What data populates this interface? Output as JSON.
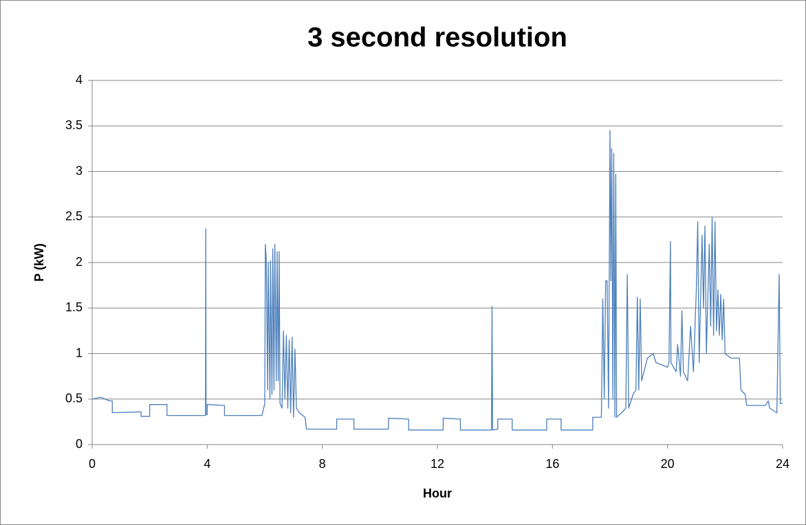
{
  "chart_data": {
    "type": "line",
    "title": "3 second resolution",
    "x_label": "Hour",
    "y_label": "P (kW)",
    "x": [
      0,
      0.3,
      0.6,
      0.7,
      0.7,
      1.7,
      1.7,
      2.0,
      2.0,
      2.6,
      2.6,
      3.94,
      3.95,
      3.96,
      4.0,
      4.0,
      4.6,
      4.6,
      5.9,
      6.0,
      6.02,
      6.05,
      6.1,
      6.12,
      6.18,
      6.2,
      6.25,
      6.28,
      6.32,
      6.35,
      6.4,
      6.43,
      6.47,
      6.5,
      6.53,
      6.6,
      6.65,
      6.7,
      6.75,
      6.8,
      6.85,
      6.9,
      6.95,
      7.0,
      7.05,
      7.1,
      7.2,
      7.4,
      7.45,
      8.5,
      8.5,
      9.1,
      9.1,
      10.3,
      10.3,
      11.0,
      11.0,
      12.2,
      12.2,
      12.8,
      12.8,
      13.88,
      13.9,
      13.92,
      14.1,
      14.1,
      14.6,
      14.6,
      15.8,
      15.8,
      16.3,
      16.3,
      17.4,
      17.4,
      17.7,
      17.75,
      17.8,
      17.85,
      17.9,
      17.95,
      18.0,
      18.03,
      18.06,
      18.1,
      18.13,
      18.17,
      18.2,
      18.23,
      18.4,
      18.55,
      18.6,
      18.65,
      18.8,
      18.9,
      18.95,
      19.0,
      19.05,
      19.1,
      19.3,
      19.5,
      19.6,
      20.0,
      20.05,
      20.1,
      20.12,
      20.3,
      20.35,
      20.45,
      20.5,
      20.55,
      20.7,
      20.8,
      20.9,
      21.0,
      21.05,
      21.1,
      21.2,
      21.25,
      21.3,
      21.35,
      21.45,
      21.5,
      21.55,
      21.6,
      21.65,
      21.7,
      21.75,
      21.8,
      21.85,
      21.9,
      21.95,
      22.0,
      22.2,
      22.5,
      22.55,
      22.7,
      22.75,
      23.4,
      23.5,
      23.55,
      23.8,
      23.88,
      23.92,
      24.0
    ],
    "values": [
      0.5,
      0.52,
      0.48,
      0.48,
      0.35,
      0.36,
      0.31,
      0.31,
      0.44,
      0.44,
      0.32,
      0.32,
      2.37,
      0.33,
      0.33,
      0.44,
      0.43,
      0.32,
      0.32,
      0.45,
      2.2,
      2.04,
      0.6,
      2.0,
      0.5,
      2.02,
      0.55,
      2.15,
      0.6,
      2.2,
      0.7,
      2.12,
      0.7,
      2.12,
      0.45,
      0.4,
      1.25,
      0.5,
      1.2,
      0.4,
      1.15,
      0.35,
      1.18,
      0.3,
      1.05,
      0.4,
      0.35,
      0.3,
      0.17,
      0.17,
      0.28,
      0.28,
      0.17,
      0.17,
      0.29,
      0.28,
      0.16,
      0.16,
      0.29,
      0.28,
      0.16,
      0.16,
      1.52,
      0.16,
      0.17,
      0.28,
      0.28,
      0.16,
      0.16,
      0.28,
      0.28,
      0.16,
      0.16,
      0.3,
      0.3,
      1.6,
      0.5,
      1.8,
      1.8,
      0.4,
      3.45,
      1.8,
      3.25,
      0.5,
      3.2,
      0.3,
      2.97,
      0.3,
      0.35,
      0.4,
      1.87,
      0.4,
      0.55,
      0.6,
      1.62,
      0.6,
      1.6,
      0.7,
      0.95,
      1.0,
      0.9,
      0.85,
      0.9,
      2.23,
      0.9,
      0.8,
      1.1,
      0.75,
      1.47,
      0.8,
      0.7,
      1.3,
      0.8,
      1.7,
      2.45,
      0.9,
      2.3,
      1.5,
      2.4,
      1.0,
      2.2,
      1.3,
      2.5,
      1.2,
      2.45,
      1.25,
      1.7,
      1.2,
      1.65,
      1.15,
      1.6,
      1.0,
      0.95,
      0.95,
      0.6,
      0.55,
      0.43,
      0.43,
      0.48,
      0.4,
      0.35,
      1.87,
      0.45,
      0.45
    ],
    "color": "#4a7ebb",
    "xlim": [
      0,
      24
    ],
    "xticks": [
      0,
      4,
      8,
      12,
      16,
      20,
      24
    ],
    "ylim": [
      0,
      4
    ],
    "yticks": [
      0,
      0.5,
      1,
      1.5,
      2,
      2.5,
      3,
      3.5,
      4
    ],
    "grid": true
  }
}
